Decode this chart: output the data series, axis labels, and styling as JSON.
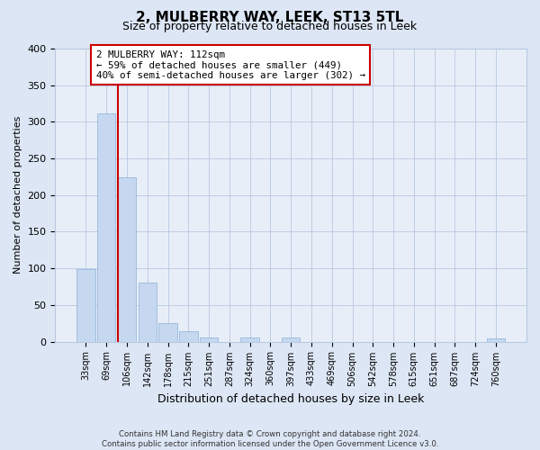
{
  "title": "2, MULBERRY WAY, LEEK, ST13 5TL",
  "subtitle": "Size of property relative to detached houses in Leek",
  "xlabel": "Distribution of detached houses by size in Leek",
  "ylabel": "Number of detached properties",
  "bar_labels": [
    "33sqm",
    "69sqm",
    "106sqm",
    "142sqm",
    "178sqm",
    "215sqm",
    "251sqm",
    "287sqm",
    "324sqm",
    "360sqm",
    "397sqm",
    "433sqm",
    "469sqm",
    "506sqm",
    "542sqm",
    "578sqm",
    "615sqm",
    "651sqm",
    "687sqm",
    "724sqm",
    "760sqm"
  ],
  "bar_values": [
    99,
    312,
    224,
    81,
    25,
    14,
    5,
    0,
    6,
    0,
    6,
    0,
    0,
    0,
    0,
    0,
    0,
    0,
    0,
    0,
    4
  ],
  "bar_color": "#c5d8f0",
  "bar_edge_color": "#8ab0d8",
  "vline_x_index": 2,
  "vline_color": "#cc0000",
  "annotation_title": "2 MULBERRY WAY: 112sqm",
  "annotation_line1": "← 59% of detached houses are smaller (449)",
  "annotation_line2": "40% of semi-detached houses are larger (302) →",
  "ylim": [
    0,
    400
  ],
  "yticks": [
    0,
    50,
    100,
    150,
    200,
    250,
    300,
    350,
    400
  ],
  "footer_line1": "Contains HM Land Registry data © Crown copyright and database right 2024.",
  "footer_line2": "Contains public sector information licensed under the Open Government Licence v3.0.",
  "background_color": "#dce6f5",
  "plot_bg_color": "#e8eef8"
}
